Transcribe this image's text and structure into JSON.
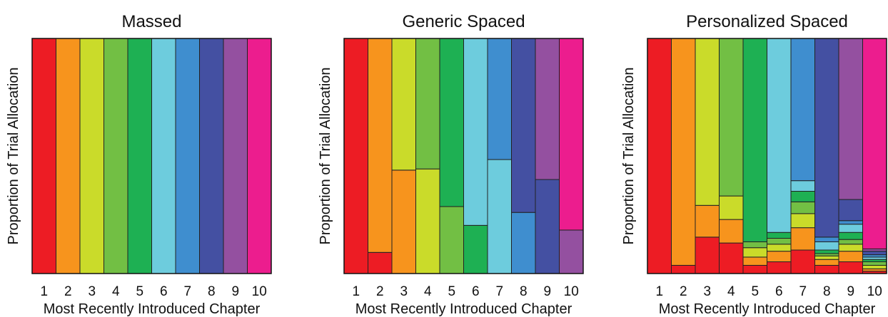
{
  "colors": [
    "#ED1C24",
    "#F7941D",
    "#CADB2A",
    "#72BF44",
    "#1EB053",
    "#6DCCDD",
    "#3F8ECF",
    "#4450A2",
    "#9450A0",
    "#EC1D8E"
  ],
  "chart_data": [
    {
      "type": "bar",
      "stacked": true,
      "title": "Massed",
      "xlabel": "Most Recently Introduced Chapter",
      "ylabel": "Proportion of Trial Allocation",
      "categories": [
        "1",
        "2",
        "3",
        "4",
        "5",
        "6",
        "7",
        "8",
        "9",
        "10"
      ],
      "ylim": [
        0,
        1
      ],
      "stacks": [
        [
          {
            "chapter": 1,
            "value": 1
          }
        ],
        [
          {
            "chapter": 2,
            "value": 1
          }
        ],
        [
          {
            "chapter": 3,
            "value": 1
          }
        ],
        [
          {
            "chapter": 4,
            "value": 1
          }
        ],
        [
          {
            "chapter": 5,
            "value": 1
          }
        ],
        [
          {
            "chapter": 6,
            "value": 1
          }
        ],
        [
          {
            "chapter": 7,
            "value": 1
          }
        ],
        [
          {
            "chapter": 8,
            "value": 1
          }
        ],
        [
          {
            "chapter": 9,
            "value": 1
          }
        ],
        [
          {
            "chapter": 10,
            "value": 1
          }
        ]
      ]
    },
    {
      "type": "bar",
      "stacked": true,
      "title": "Generic Spaced",
      "xlabel": "Most Recently Introduced Chapter",
      "ylabel": "Proportion of Trial Allocation",
      "categories": [
        "1",
        "2",
        "3",
        "4",
        "5",
        "6",
        "7",
        "8",
        "9",
        "10"
      ],
      "ylim": [
        0,
        1
      ],
      "stacks": [
        [
          {
            "chapter": 1,
            "value": 1
          }
        ],
        [
          {
            "chapter": 1,
            "value": 0.09
          },
          {
            "chapter": 2,
            "value": 0.91
          }
        ],
        [
          {
            "chapter": 2,
            "value": 0.44
          },
          {
            "chapter": 3,
            "value": 0.56
          }
        ],
        [
          {
            "chapter": 3,
            "value": 0.445
          },
          {
            "chapter": 4,
            "value": 0.555
          }
        ],
        [
          {
            "chapter": 4,
            "value": 0.285
          },
          {
            "chapter": 5,
            "value": 0.715
          }
        ],
        [
          {
            "chapter": 5,
            "value": 0.205
          },
          {
            "chapter": 6,
            "value": 0.795
          }
        ],
        [
          {
            "chapter": 6,
            "value": 0.485
          },
          {
            "chapter": 7,
            "value": 0.515
          }
        ],
        [
          {
            "chapter": 7,
            "value": 0.26
          },
          {
            "chapter": 8,
            "value": 0.74
          }
        ],
        [
          {
            "chapter": 8,
            "value": 0.4
          },
          {
            "chapter": 9,
            "value": 0.6
          }
        ],
        [
          {
            "chapter": 9,
            "value": 0.185
          },
          {
            "chapter": 10,
            "value": 0.815
          }
        ]
      ]
    },
    {
      "type": "bar",
      "stacked": true,
      "title": "Personalized Spaced",
      "xlabel": "Most Recently Introduced Chapter",
      "ylabel": "Proportion of Trial Allocation",
      "categories": [
        "1",
        "2",
        "3",
        "4",
        "5",
        "6",
        "7",
        "8",
        "9",
        "10"
      ],
      "ylim": [
        0,
        1
      ],
      "stacks": [
        [
          {
            "chapter": 1,
            "value": 1
          }
        ],
        [
          {
            "chapter": 1,
            "value": 0.035
          },
          {
            "chapter": 2,
            "value": 0.965
          }
        ],
        [
          {
            "chapter": 1,
            "value": 0.155
          },
          {
            "chapter": 2,
            "value": 0.135
          },
          {
            "chapter": 3,
            "value": 0.71
          }
        ],
        [
          {
            "chapter": 1,
            "value": 0.13
          },
          {
            "chapter": 2,
            "value": 0.1
          },
          {
            "chapter": 3,
            "value": 0.1
          },
          {
            "chapter": 4,
            "value": 0.67
          }
        ],
        [
          {
            "chapter": 1,
            "value": 0.035
          },
          {
            "chapter": 2,
            "value": 0.035
          },
          {
            "chapter": 3,
            "value": 0.04
          },
          {
            "chapter": 4,
            "value": 0.025
          },
          {
            "chapter": 5,
            "value": 0.865
          }
        ],
        [
          {
            "chapter": 1,
            "value": 0.05
          },
          {
            "chapter": 2,
            "value": 0.045
          },
          {
            "chapter": 3,
            "value": 0.03
          },
          {
            "chapter": 4,
            "value": 0.025
          },
          {
            "chapter": 5,
            "value": 0.025
          },
          {
            "chapter": 6,
            "value": 0.825
          }
        ],
        [
          {
            "chapter": 1,
            "value": 0.1
          },
          {
            "chapter": 2,
            "value": 0.095
          },
          {
            "chapter": 3,
            "value": 0.06
          },
          {
            "chapter": 4,
            "value": 0.05
          },
          {
            "chapter": 5,
            "value": 0.045
          },
          {
            "chapter": 6,
            "value": 0.045
          },
          {
            "chapter": 7,
            "value": 0.605
          }
        ],
        [
          {
            "chapter": 1,
            "value": 0.035
          },
          {
            "chapter": 2,
            "value": 0.025
          },
          {
            "chapter": 3,
            "value": 0.015
          },
          {
            "chapter": 4,
            "value": 0.01
          },
          {
            "chapter": 5,
            "value": 0.015
          },
          {
            "chapter": 6,
            "value": 0.035
          },
          {
            "chapter": 7,
            "value": 0.02
          },
          {
            "chapter": 8,
            "value": 0.845
          }
        ],
        [
          {
            "chapter": 1,
            "value": 0.05
          },
          {
            "chapter": 2,
            "value": 0.045
          },
          {
            "chapter": 3,
            "value": 0.03
          },
          {
            "chapter": 4,
            "value": 0.02
          },
          {
            "chapter": 5,
            "value": 0.03
          },
          {
            "chapter": 6,
            "value": 0.035
          },
          {
            "chapter": 7,
            "value": 0.015
          },
          {
            "chapter": 8,
            "value": 0.09
          },
          {
            "chapter": 9,
            "value": 0.685
          }
        ],
        [
          {
            "chapter": 1,
            "value": 0.01
          },
          {
            "chapter": 2,
            "value": 0.01
          },
          {
            "chapter": 3,
            "value": 0.015
          },
          {
            "chapter": 4,
            "value": 0.015
          },
          {
            "chapter": 5,
            "value": 0.01
          },
          {
            "chapter": 6,
            "value": 0.01
          },
          {
            "chapter": 7,
            "value": 0.01
          },
          {
            "chapter": 8,
            "value": 0.015
          },
          {
            "chapter": 9,
            "value": 0.01
          },
          {
            "chapter": 10,
            "value": 0.895
          }
        ]
      ]
    }
  ]
}
